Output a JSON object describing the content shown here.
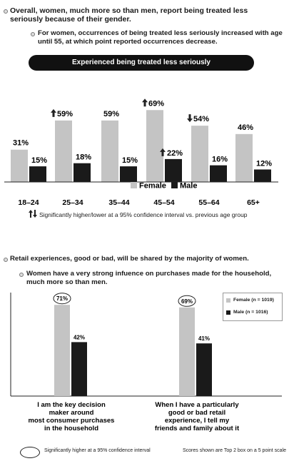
{
  "section1": {
    "bullet1": "Overall, women, much more so than men, report being treated less seriously because of their gender.",
    "bullet2": "For women, occurrences of being treated less seriously increased with age until 55, at which point reported occurrences decrease.",
    "banner": "Experienced being treated less seriously",
    "legend_female": "Female",
    "legend_male": "Male",
    "sig_note": "Significantly higher/lower at a 95% confidence interval vs. previous age group"
  },
  "section2": {
    "bullet1": "Retail experiences, good or bad, will be shared by the majority of women.",
    "bullet2": "Women have a very strong infuence on purchases made for the household, much more so than men.",
    "legend_female": "Female (n = 1019)",
    "legend_male": "Male (n = 1016)",
    "footnote_left": "Significantly higher at a 95% confidence interval",
    "footnote_right": "Scores shown are Top 2 box on a 5 point scale"
  },
  "colors": {
    "female": "#c4c4c4",
    "male": "#1a1a1a",
    "banner": "#111111"
  },
  "chart_data": [
    {
      "type": "bar",
      "title": "Experienced being treated less seriously",
      "categories": [
        "18–24",
        "25–34",
        "35–44",
        "45–54",
        "55–64",
        "65+"
      ],
      "series": [
        {
          "name": "Female",
          "values": [
            31,
            59,
            59,
            69,
            54,
            46
          ],
          "labels": [
            "31%",
            "59%",
            "59%",
            "69%",
            "54%",
            "46%"
          ],
          "markers": [
            "",
            "up",
            "",
            "up",
            "down",
            ""
          ]
        },
        {
          "name": "Male",
          "values": [
            15,
            18,
            15,
            22,
            16,
            12
          ],
          "labels": [
            "15%",
            "18%",
            "15%",
            "22%",
            "16%",
            "12%"
          ],
          "markers": [
            "",
            "",
            "",
            "up",
            "",
            ""
          ]
        }
      ],
      "legend": "bottom-right",
      "ylim": [
        0,
        75
      ]
    },
    {
      "type": "bar",
      "categories": [
        "I am the key decision maker around most consumer purchases in the household",
        "When I have a particularly good or bad retail experience, I tell my friends and family about it"
      ],
      "category_lines": [
        [
          "I am the key decision",
          "maker around",
          "most consumer purchases",
          "in the household"
        ],
        [
          "When I have a particularly",
          "good or bad retail",
          "experience, I tell my",
          "friends and family about it"
        ]
      ],
      "series": [
        {
          "name": "Female (n = 1019)",
          "values": [
            71,
            69
          ],
          "labels": [
            "71%",
            "69%"
          ],
          "circled": [
            true,
            true
          ]
        },
        {
          "name": "Male (n = 1016)",
          "values": [
            42,
            41
          ],
          "labels": [
            "42%",
            "41%"
          ],
          "circled": [
            false,
            false
          ]
        }
      ],
      "legend": "top-right",
      "ylim": [
        0,
        80
      ]
    }
  ]
}
